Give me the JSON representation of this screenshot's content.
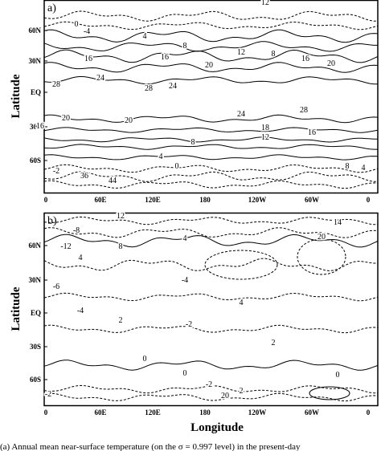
{
  "panels": [
    {
      "label": "a)",
      "y_ticks": [
        "60N",
        "30N",
        "EQ",
        "30S",
        "60S"
      ],
      "x_ticks": [
        "0",
        "60E",
        "120E",
        "180",
        "120W",
        "60W",
        "0"
      ],
      "contour_labels": [
        "12",
        "0",
        "-4",
        "4",
        "8",
        "12",
        "16",
        "16",
        "20",
        "8",
        "16",
        "20",
        "24",
        "28",
        "24",
        "28",
        "20",
        "16",
        "20",
        "24",
        "18",
        "12",
        "8",
        "4",
        "0",
        "-2",
        "36",
        "44",
        "8",
        "4",
        "28",
        "16"
      ]
    },
    {
      "label": "b)",
      "y_ticks": [
        "60N",
        "30N",
        "EQ",
        "30S",
        "60S"
      ],
      "x_ticks": [
        "0",
        "60E",
        "120E",
        "180",
        "120W",
        "60W",
        "0"
      ],
      "contour_labels": [
        "12",
        "-8",
        "-12",
        "4",
        "-6",
        "8",
        "14",
        "20",
        "4",
        "-4",
        "-2",
        "2",
        "4",
        "-4",
        "2",
        "0",
        "0",
        "-2",
        "2",
        "20",
        "0",
        "-2"
      ]
    }
  ],
  "y_axis_label": "Latitude",
  "x_axis_label": "Longitude",
  "caption": "(a) Annual mean near-surface temperature (on the σ = 0.997 level) in the present-day"
}
